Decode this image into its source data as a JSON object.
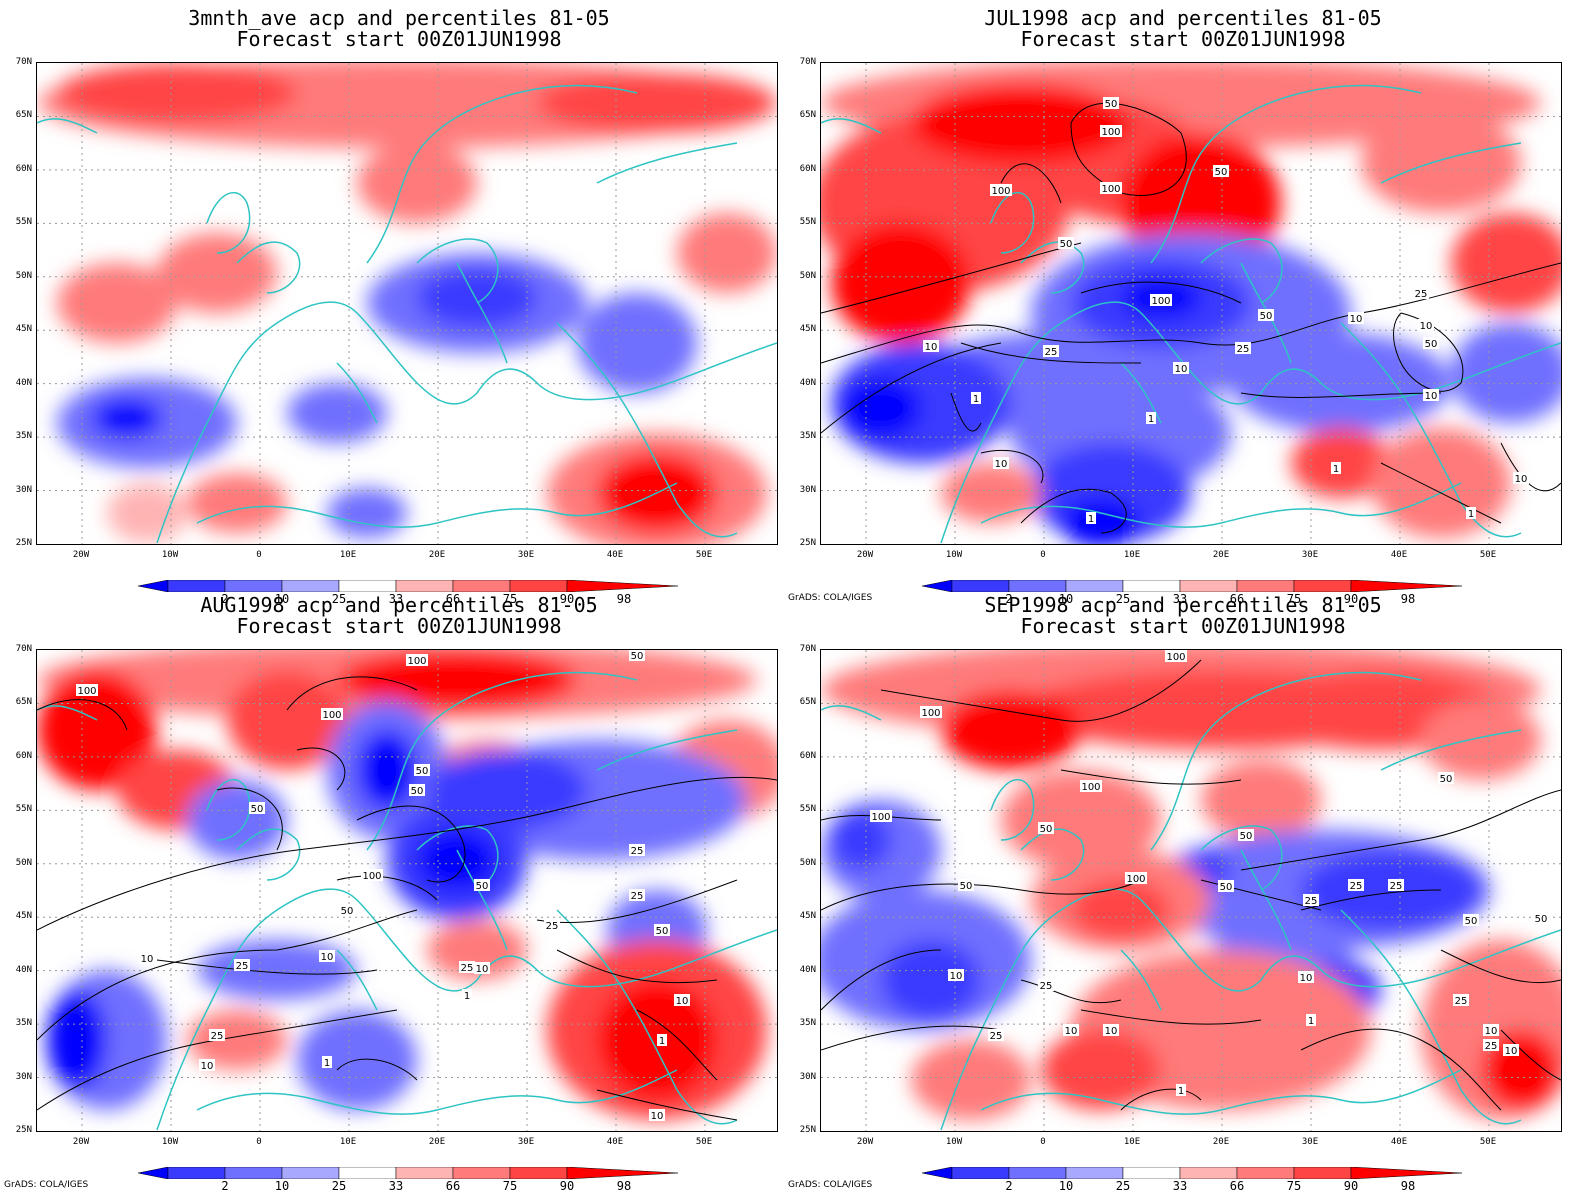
{
  "panels": [
    {
      "title1": "3mnth_ave acp and percentiles 81-05",
      "title2": "Forecast start 00Z01JUN1998",
      "credit": "",
      "contours": []
    },
    {
      "title1": "JUL1998 acp and percentiles 81-05",
      "title2": "Forecast start 00Z01JUN1998",
      "credit": "GrADS: COLA/IGES",
      "contours": [
        "50",
        "100",
        "100",
        "100",
        "50",
        "50",
        "100",
        "25",
        "10",
        "50",
        "10",
        "25",
        "10",
        "1",
        "1",
        "10",
        "1",
        "10",
        "1",
        "10",
        "1",
        "10",
        "25",
        "50"
      ]
    },
    {
      "title1": "AUG1998 acp and percentiles 81-05",
      "title2": "Forecast start 00Z01JUN1998",
      "credit": "GrADS: COLA/IGES",
      "contours": [
        "100",
        "100",
        "50",
        "100",
        "50",
        "50",
        "50",
        "100",
        "50",
        "50",
        "25",
        "25",
        "50",
        "25",
        "10",
        "25",
        "10",
        "25",
        "10",
        "1",
        "25",
        "10",
        "1",
        "10",
        "1",
        "10"
      ]
    },
    {
      "title1": "SEP1998 acp and percentiles 81-05",
      "title2": "Forecast start 00Z01JUN1998",
      "credit": "GrADS: COLA/IGES",
      "contours": [
        "100",
        "100",
        "100",
        "100",
        "50",
        "50",
        "50",
        "50",
        "100",
        "50",
        "50",
        "25",
        "25",
        "25",
        "50",
        "10",
        "25",
        "10",
        "25",
        "10",
        "25",
        "10",
        "1",
        "1",
        "10",
        "25",
        "10"
      ]
    }
  ],
  "axes": {
    "lat_labels": [
      "70N",
      "65N",
      "60N",
      "55N",
      "50N",
      "45N",
      "40N",
      "35N",
      "30N",
      "25N"
    ],
    "lon_labels": [
      "20W",
      "10W",
      "0",
      "10E",
      "20E",
      "30E",
      "40E",
      "50E"
    ]
  },
  "colorbar": {
    "labels": [
      "2",
      "10",
      "25",
      "33",
      "66",
      "75",
      "90",
      "98"
    ],
    "colors": [
      "#0000ff",
      "#3a3aff",
      "#7070ff",
      "#a8a8ff",
      "#ffffff",
      "#ffb4b4",
      "#ff7a7a",
      "#ff4444",
      "#ff0000"
    ]
  },
  "colors": {
    "coastline": "#2ec4c4",
    "contour": "#000000",
    "grid": "#999999"
  }
}
